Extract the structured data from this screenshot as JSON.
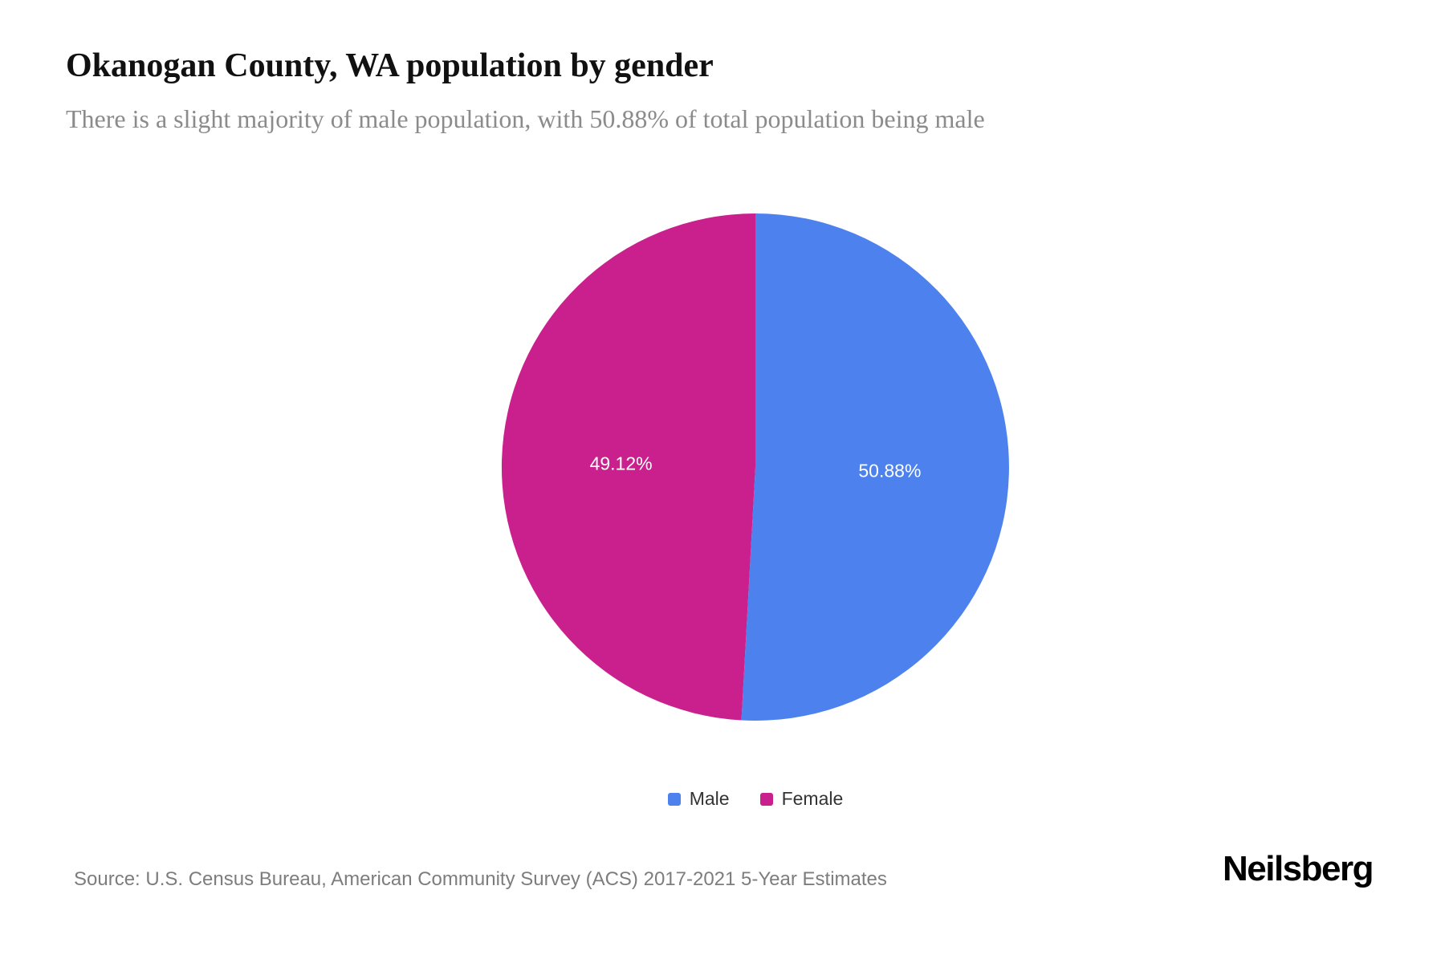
{
  "chart_data": {
    "type": "pie",
    "title": "Okanogan County, WA population by gender",
    "subtitle": "There is a slight majority of male population, with 50.88% of total population being male",
    "categories": [
      "Male",
      "Female"
    ],
    "values": [
      50.88,
      49.12
    ],
    "value_labels": [
      "50.88%",
      "49.12%"
    ],
    "colors": [
      "#4d82ee",
      "#c9208e"
    ],
    "start_angle_deg": 0,
    "direction": "clockwise",
    "slice_label_color": "#ffffff",
    "legend_position": "bottom"
  },
  "footer": {
    "source": "Source: U.S. Census Bureau, American Community Survey (ACS) 2017-2021 5-Year Estimates",
    "brand": "Neilsberg"
  }
}
